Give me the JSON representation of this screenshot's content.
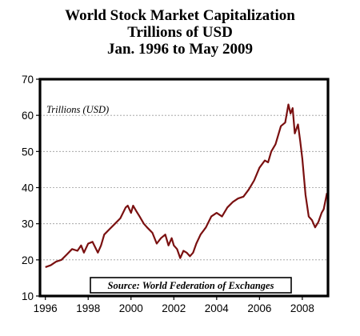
{
  "chart_data": {
    "type": "line",
    "title_lines": [
      "World Stock Market Capitalization",
      "Trillions of USD",
      "Jan. 1996 to May 2009"
    ],
    "inner_label": "Trillions (USD)",
    "source_note": "Source: World Federation of Exchanges",
    "xlabel": "",
    "ylabel": "",
    "xlim": [
      1995.75,
      2009.2
    ],
    "ylim": [
      10,
      70
    ],
    "y_ticks": [
      10,
      20,
      30,
      40,
      50,
      60,
      70
    ],
    "x_ticks": [
      1996,
      1998,
      2000,
      2002,
      2004,
      2006,
      2008
    ],
    "grid": "horizontal-dashed",
    "series": [
      {
        "color": "#7a1010",
        "x": [
          1996.0,
          1996.25,
          1996.5,
          1996.75,
          1997.0,
          1997.25,
          1997.5,
          1997.67,
          1997.8,
          1998.0,
          1998.2,
          1998.45,
          1998.6,
          1998.75,
          1999.0,
          1999.25,
          1999.5,
          1999.75,
          1999.85,
          2000.0,
          2000.1,
          2000.25,
          2000.4,
          2000.6,
          2000.75,
          2001.0,
          2001.2,
          2001.4,
          2001.6,
          2001.75,
          2001.9,
          2002.0,
          2002.15,
          2002.3,
          2002.45,
          2002.6,
          2002.75,
          2002.9,
          2003.05,
          2003.25,
          2003.5,
          2003.75,
          2004.0,
          2004.25,
          2004.5,
          2004.75,
          2005.0,
          2005.25,
          2005.5,
          2005.75,
          2006.0,
          2006.25,
          2006.4,
          2006.55,
          2006.75,
          2007.0,
          2007.2,
          2007.35,
          2007.45,
          2007.55,
          2007.65,
          2007.8,
          2007.9,
          2008.0,
          2008.15,
          2008.3,
          2008.45,
          2008.6,
          2008.75,
          2008.9,
          2009.0,
          2009.15
        ],
        "values": [
          18.0,
          18.5,
          19.5,
          20.0,
          21.5,
          23.0,
          22.5,
          24.0,
          22.0,
          24.5,
          25.0,
          22.0,
          24.0,
          27.0,
          28.5,
          30.0,
          31.5,
          34.5,
          35.0,
          33.0,
          35.0,
          33.5,
          32.0,
          30.0,
          29.0,
          27.5,
          24.5,
          26.0,
          27.0,
          24.0,
          26.0,
          24.0,
          23.0,
          20.5,
          22.5,
          22.0,
          21.0,
          22.0,
          24.5,
          27.0,
          29.0,
          32.0,
          33.0,
          32.0,
          34.5,
          36.0,
          37.0,
          37.5,
          39.5,
          42.0,
          45.5,
          47.5,
          47.0,
          50.0,
          52.0,
          57.0,
          58.0,
          63.0,
          60.5,
          62.0,
          55.0,
          57.5,
          53.0,
          48.0,
          38.0,
          32.0,
          31.0,
          29.0,
          30.5,
          33.0,
          34.0,
          38.5
        ]
      }
    ]
  }
}
